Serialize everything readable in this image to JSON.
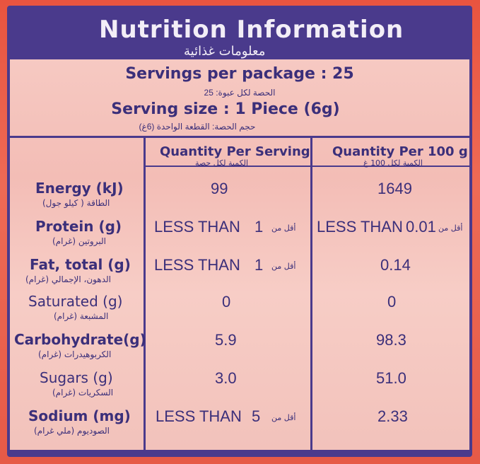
{
  "title": "Nutrition Information",
  "title_ar": "معلومات غذائية",
  "servings": {
    "per_package": "Servings per package : 25",
    "per_package_ar": "الحصة لكل عبوة: 25",
    "size": "Serving size  :  1 Piece (6g)",
    "size_ar": "حجم الحصة: القطعة الواحدة (6غ)"
  },
  "headers": {
    "per_serving": "Quantity Per Serving",
    "per_serving_ar": "الكمية لكل حصة",
    "per_100g": "Quantity Per 100 g",
    "per_100g_ar": "الكمية لكل 100 غ"
  },
  "less_than": "LESS THAN",
  "less_than_ar": "أقل من",
  "rows": [
    {
      "label": "Energy (kJ)",
      "label_ar": "الطاقة ( كيلو جول)",
      "bold": true,
      "serving": "99",
      "per100": "1649"
    },
    {
      "label": "Protein (g)",
      "label_ar": "البروتين (غرام)",
      "bold": true,
      "serving": "1",
      "per100": "0.01"
    },
    {
      "label": "Fat, total (g)",
      "label_ar": "الدهون، الإجمالي (غرام)",
      "bold": true,
      "serving": "1",
      "per100": "0.14"
    },
    {
      "label": "Saturated (g)",
      "label_ar": "المشبعة (غرام)",
      "bold": false,
      "serving": "0",
      "per100": "0"
    },
    {
      "label": "Carbohydrate(g)",
      "label_ar": "الكربوهيدرات (غرام)",
      "bold": true,
      "serving": "5.9",
      "per100": "98.3"
    },
    {
      "label": "Sugars (g)",
      "label_ar": "السكريات (غرام)",
      "bold": false,
      "serving": "3.0",
      "per100": "51.0"
    },
    {
      "label": "Sodium (mg)",
      "label_ar": "الصوديوم (ملي غرام)",
      "bold": true,
      "serving": "5",
      "per100": "2.33"
    }
  ],
  "colors": {
    "ink": "#3b2f7a",
    "frame": "#4a3a8c",
    "background": "#e8463a"
  }
}
